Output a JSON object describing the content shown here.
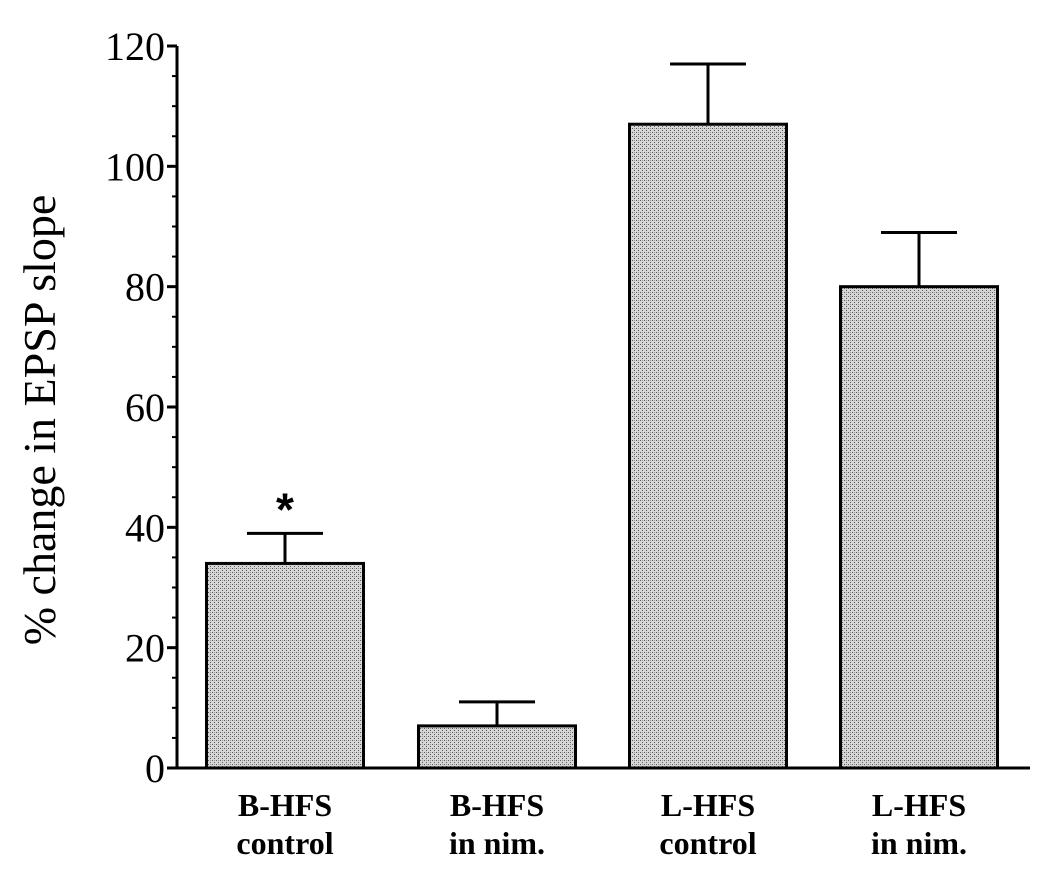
{
  "chart_data": {
    "type": "bar",
    "title": "",
    "ylabel": "% change in EPSP slope",
    "xlabel": "",
    "ylim": [
      0,
      120
    ],
    "yticks": [
      0,
      20,
      40,
      60,
      80,
      100,
      120
    ],
    "y_minor_step": 5,
    "categories": [
      [
        "B-HFS",
        "control"
      ],
      [
        "B-HFS",
        "in nim."
      ],
      [
        "L-HFS",
        "control"
      ],
      [
        "L-HFS",
        "in nim."
      ]
    ],
    "values": [
      34,
      7,
      107,
      80
    ],
    "errors": [
      5,
      4,
      10,
      9
    ],
    "annotations": [
      "*",
      "",
      "",
      ""
    ],
    "bar_fill": "#b8b8b8",
    "grid": false
  }
}
